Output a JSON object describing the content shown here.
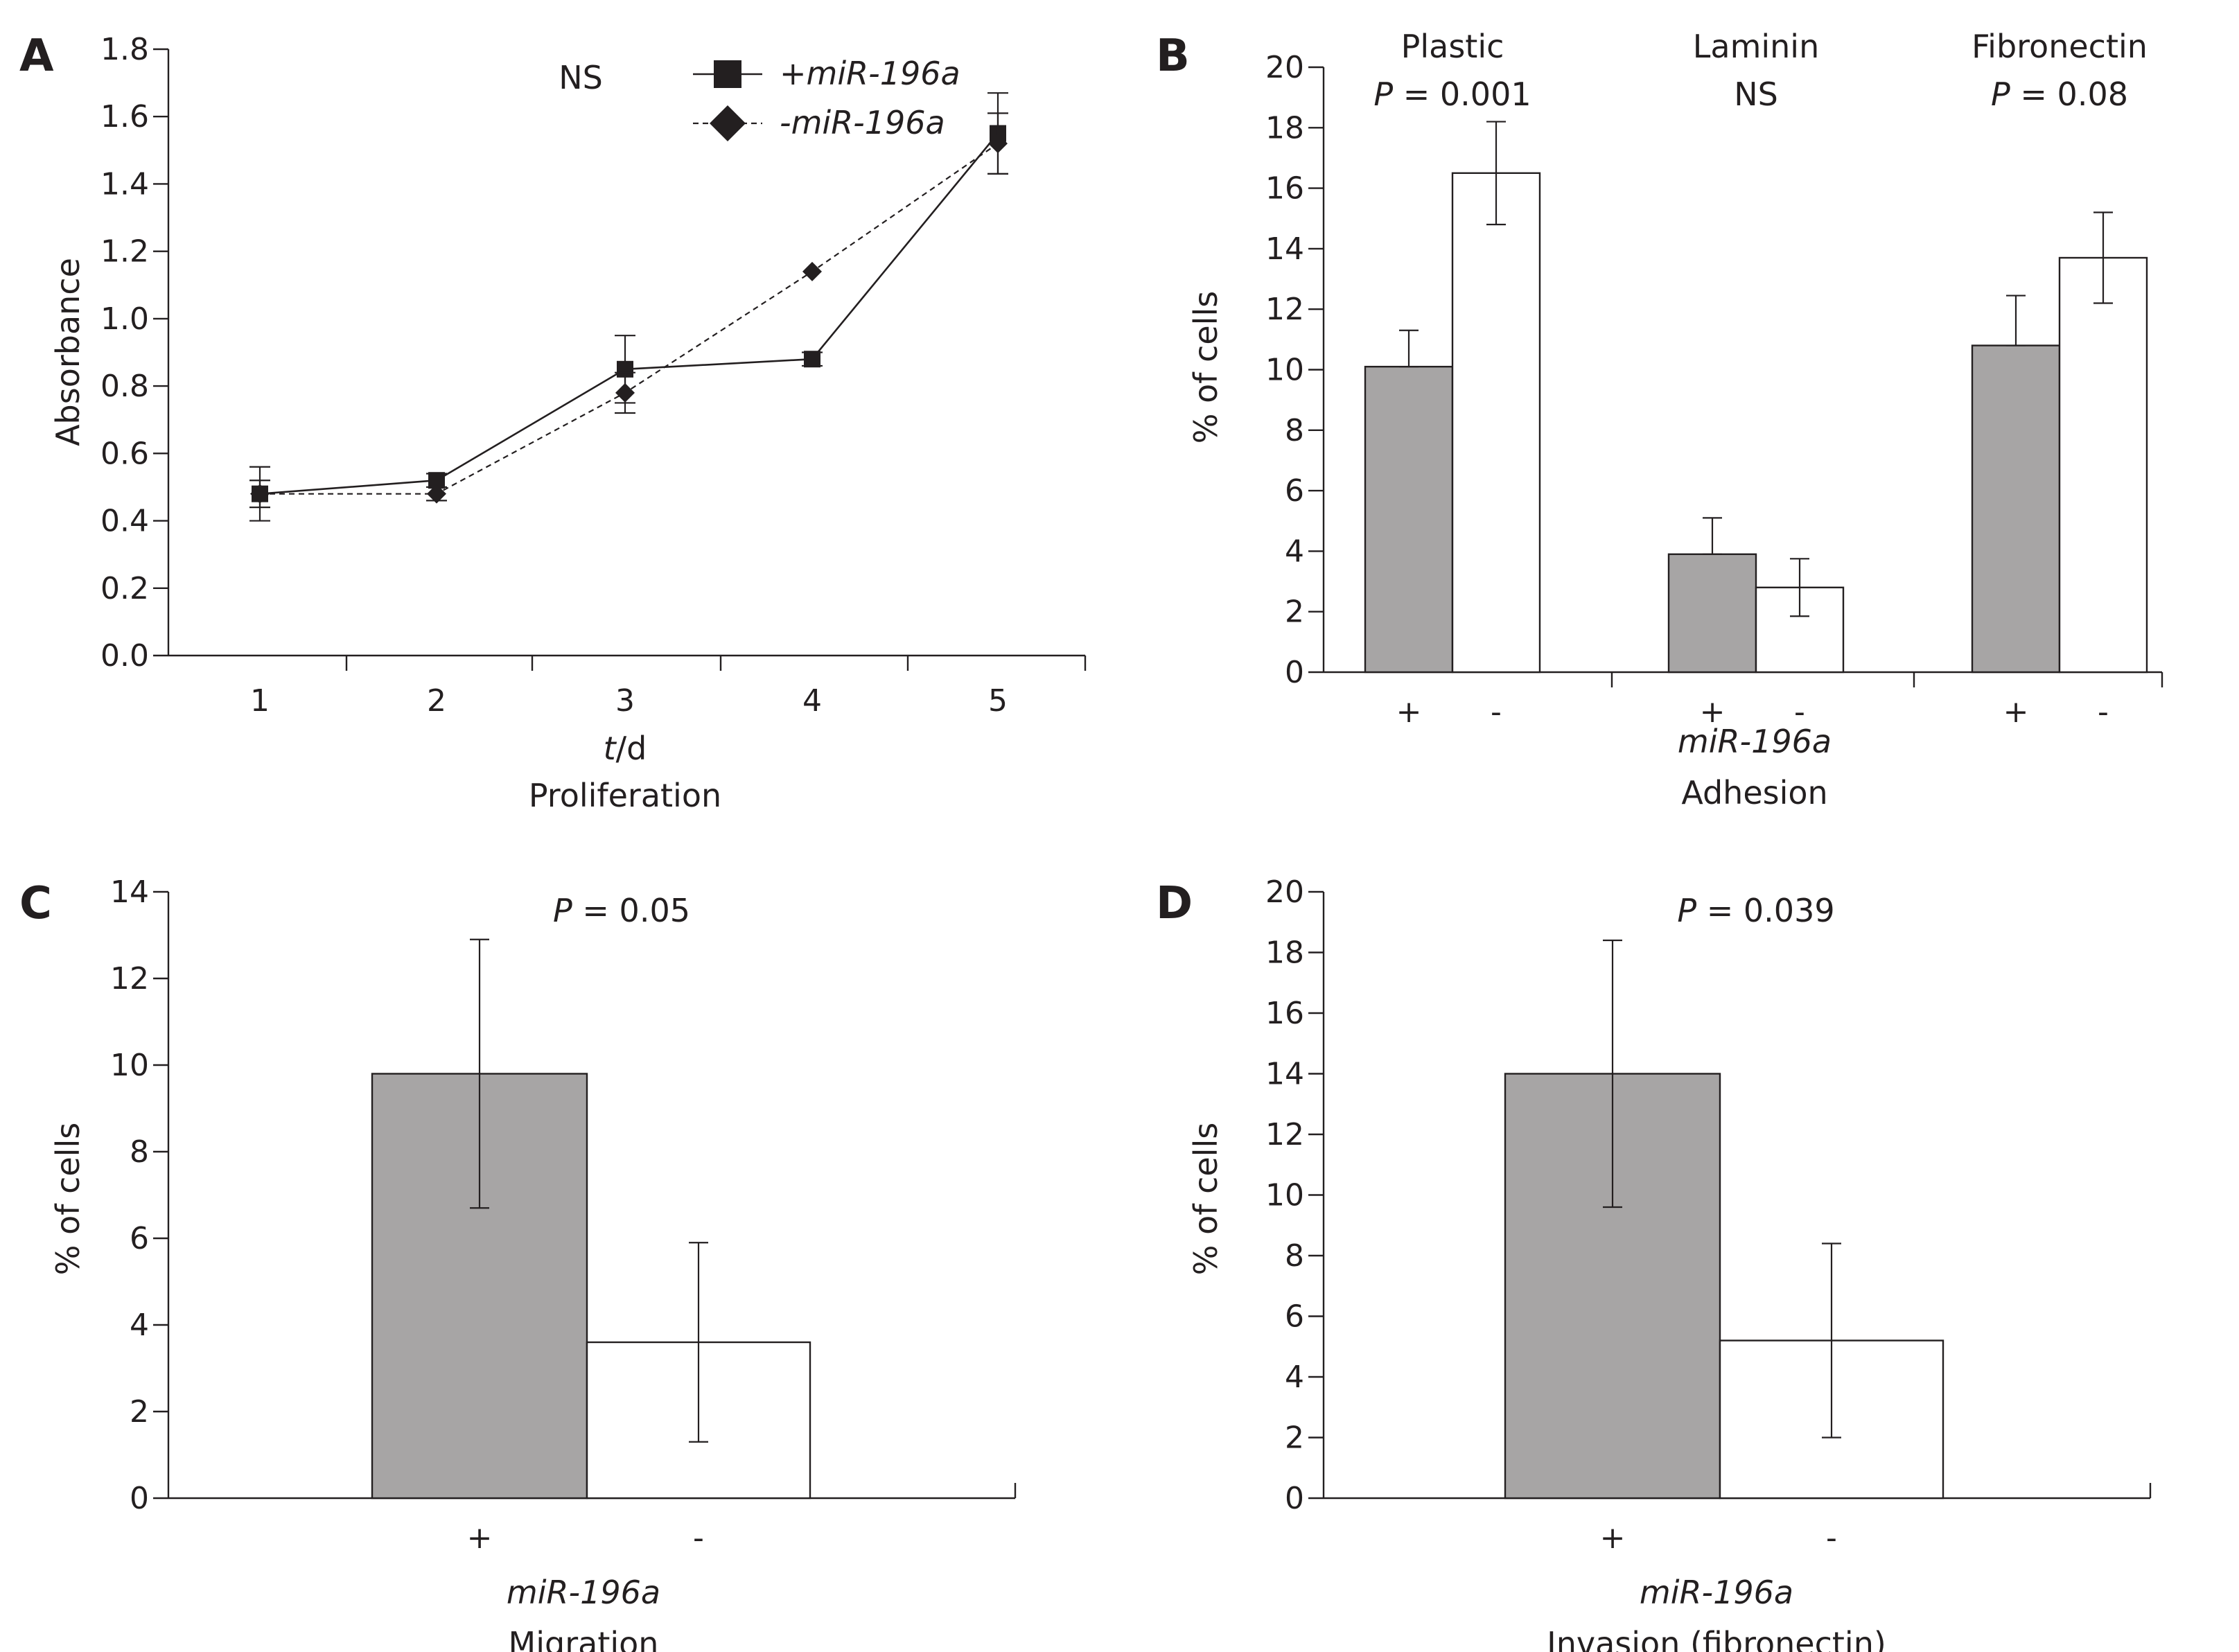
{
  "colors": {
    "plus_bar": "#a7a5a5",
    "minus_bar": "#ffffff",
    "ink": "#231f20"
  },
  "chart_data": [
    {
      "panel": "A",
      "type": "line",
      "xlabel_unit_t": "t",
      "xlabel_unit_d": "/d",
      "subtitle": "Proliferation",
      "ylabel": "Absorbance",
      "annotation": "NS",
      "ylim": [
        0.0,
        1.8
      ],
      "yticks": [
        "0.0",
        "0.2",
        "0.4",
        "0.6",
        "0.8",
        "1.0",
        "1.2",
        "1.4",
        "1.6",
        "1.8"
      ],
      "x": [
        "1",
        "2",
        "3",
        "4",
        "5"
      ],
      "series": [
        {
          "name": "+miR-196a",
          "marker": "square",
          "line": "solid",
          "values": [
            0.48,
            0.52,
            0.85,
            0.88,
            1.55
          ],
          "errors": [
            0.08,
            0.02,
            0.1,
            0.02,
            0.12
          ]
        },
        {
          "name": "-miR-196a",
          "marker": "diamond",
          "line": "dashed",
          "values": [
            0.48,
            0.48,
            0.78,
            1.14,
            1.52
          ],
          "errors": [
            0.04,
            0.02,
            0.06,
            0.0,
            0.09
          ]
        }
      ],
      "legend": "top-right"
    },
    {
      "panel": "B",
      "type": "bar",
      "ylabel": "% of cells",
      "ylim": [
        0,
        20
      ],
      "yticks": [
        "0",
        "2",
        "4",
        "6",
        "8",
        "10",
        "12",
        "14",
        "16",
        "18",
        "20"
      ],
      "xlabel": "miR-196a",
      "subtitle": "Adhesion",
      "groups": [
        {
          "name": "Plastic",
          "pvalue": "P = 0.001",
          "plus": 10.1,
          "plus_err": 1.2,
          "minus": 16.5,
          "minus_err": 1.7
        },
        {
          "name": "Laminin",
          "pvalue": "NS",
          "plus": 3.9,
          "plus_err": 1.2,
          "minus": 2.8,
          "minus_err": 0.95
        },
        {
          "name": "Fibronectin",
          "pvalue": "P = 0.08",
          "plus": 10.8,
          "plus_err": 1.65,
          "minus": 13.7,
          "minus_err": 1.5
        }
      ],
      "bar_labels": [
        "+",
        "-"
      ]
    },
    {
      "panel": "C",
      "type": "bar",
      "ylabel": "% of cells",
      "ylim": [
        0,
        14
      ],
      "yticks": [
        "0",
        "2",
        "4",
        "6",
        "8",
        "10",
        "12",
        "14"
      ],
      "xlabel": "miR-196a",
      "subtitle": "Migration",
      "pvalue": "P = 0.05",
      "plus": 9.8,
      "plus_err": 3.1,
      "minus": 3.6,
      "minus_err": 2.3,
      "bar_labels": [
        "+",
        "-"
      ]
    },
    {
      "panel": "D",
      "type": "bar",
      "ylabel": "% of cells",
      "ylim": [
        0,
        20
      ],
      "yticks": [
        "0",
        "2",
        "4",
        "6",
        "8",
        "10",
        "12",
        "14",
        "16",
        "18",
        "20"
      ],
      "xlabel": "miR-196a",
      "subtitle": "Invasion (fibronectin)",
      "pvalue": "P = 0.039",
      "plus": 14.0,
      "plus_err": 4.4,
      "minus": 5.2,
      "minus_err": 3.2,
      "bar_labels": [
        "+",
        "-"
      ]
    }
  ]
}
